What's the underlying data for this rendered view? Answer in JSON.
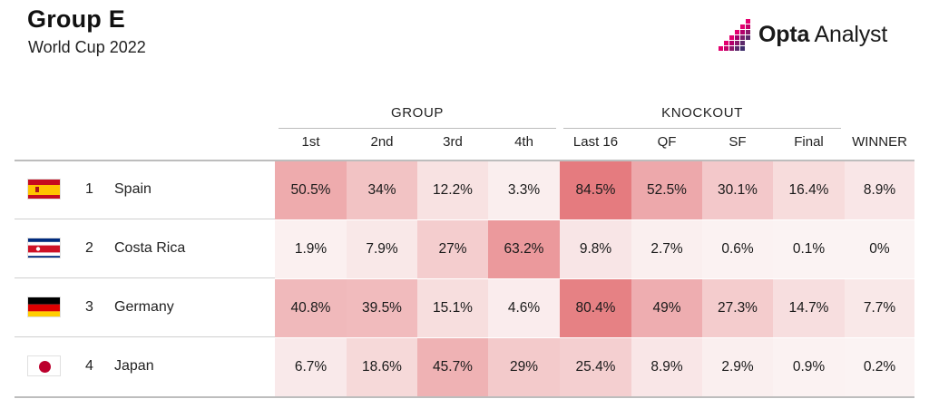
{
  "header": {
    "title": "Group E",
    "subtitle": "World Cup 2022"
  },
  "brand": {
    "strong": "Opta",
    "light": " Analyst",
    "accent": "#e3006f",
    "icon": "opta-pixel-icon"
  },
  "chart_data": {
    "type": "table",
    "groups": [
      {
        "label": "GROUP",
        "columns": [
          "1st",
          "2nd",
          "3rd",
          "4th"
        ]
      },
      {
        "label": "KNOCKOUT",
        "columns": [
          "Last 16",
          "QF",
          "SF",
          "Final"
        ]
      },
      {
        "label": "",
        "columns": [
          "WINNER"
        ]
      }
    ],
    "columns": [
      "1st",
      "2nd",
      "3rd",
      "4th",
      "Last 16",
      "QF",
      "SF",
      "Final",
      "WINNER"
    ],
    "rows": [
      {
        "rank": "1",
        "team": "Spain",
        "flag": "spain-flag-icon",
        "values": [
          50.5,
          34,
          12.2,
          3.3,
          84.5,
          52.5,
          30.1,
          16.4,
          8.9
        ],
        "labels": [
          "50.5%",
          "34%",
          "12.2%",
          "3.3%",
          "84.5%",
          "52.5%",
          "30.1%",
          "16.4%",
          "8.9%"
        ]
      },
      {
        "rank": "2",
        "team": "Costa Rica",
        "flag": "costa-rica-flag-icon",
        "values": [
          1.9,
          7.9,
          27,
          63.2,
          9.8,
          2.7,
          0.6,
          0.1,
          0
        ],
        "labels": [
          "1.9%",
          "7.9%",
          "27%",
          "63.2%",
          "9.8%",
          "2.7%",
          "0.6%",
          "0.1%",
          "0%"
        ]
      },
      {
        "rank": "3",
        "team": "Germany",
        "flag": "germany-flag-icon",
        "values": [
          40.8,
          39.5,
          15.1,
          4.6,
          80.4,
          49,
          27.3,
          14.7,
          7.7
        ],
        "labels": [
          "40.8%",
          "39.5%",
          "15.1%",
          "4.6%",
          "80.4%",
          "49%",
          "27.3%",
          "14.7%",
          "7.7%"
        ]
      },
      {
        "rank": "4",
        "team": "Japan",
        "flag": "japan-flag-icon",
        "values": [
          6.7,
          18.6,
          45.7,
          29,
          25.4,
          8.9,
          2.9,
          0.9,
          0.2
        ],
        "labels": [
          "6.7%",
          "18.6%",
          "45.7%",
          "29%",
          "25.4%",
          "8.9%",
          "2.9%",
          "0.9%",
          "0.2%"
        ]
      }
    ],
    "color_scale": {
      "low": "#fbf3f3",
      "high": "#e57a7e",
      "max": 85
    }
  }
}
